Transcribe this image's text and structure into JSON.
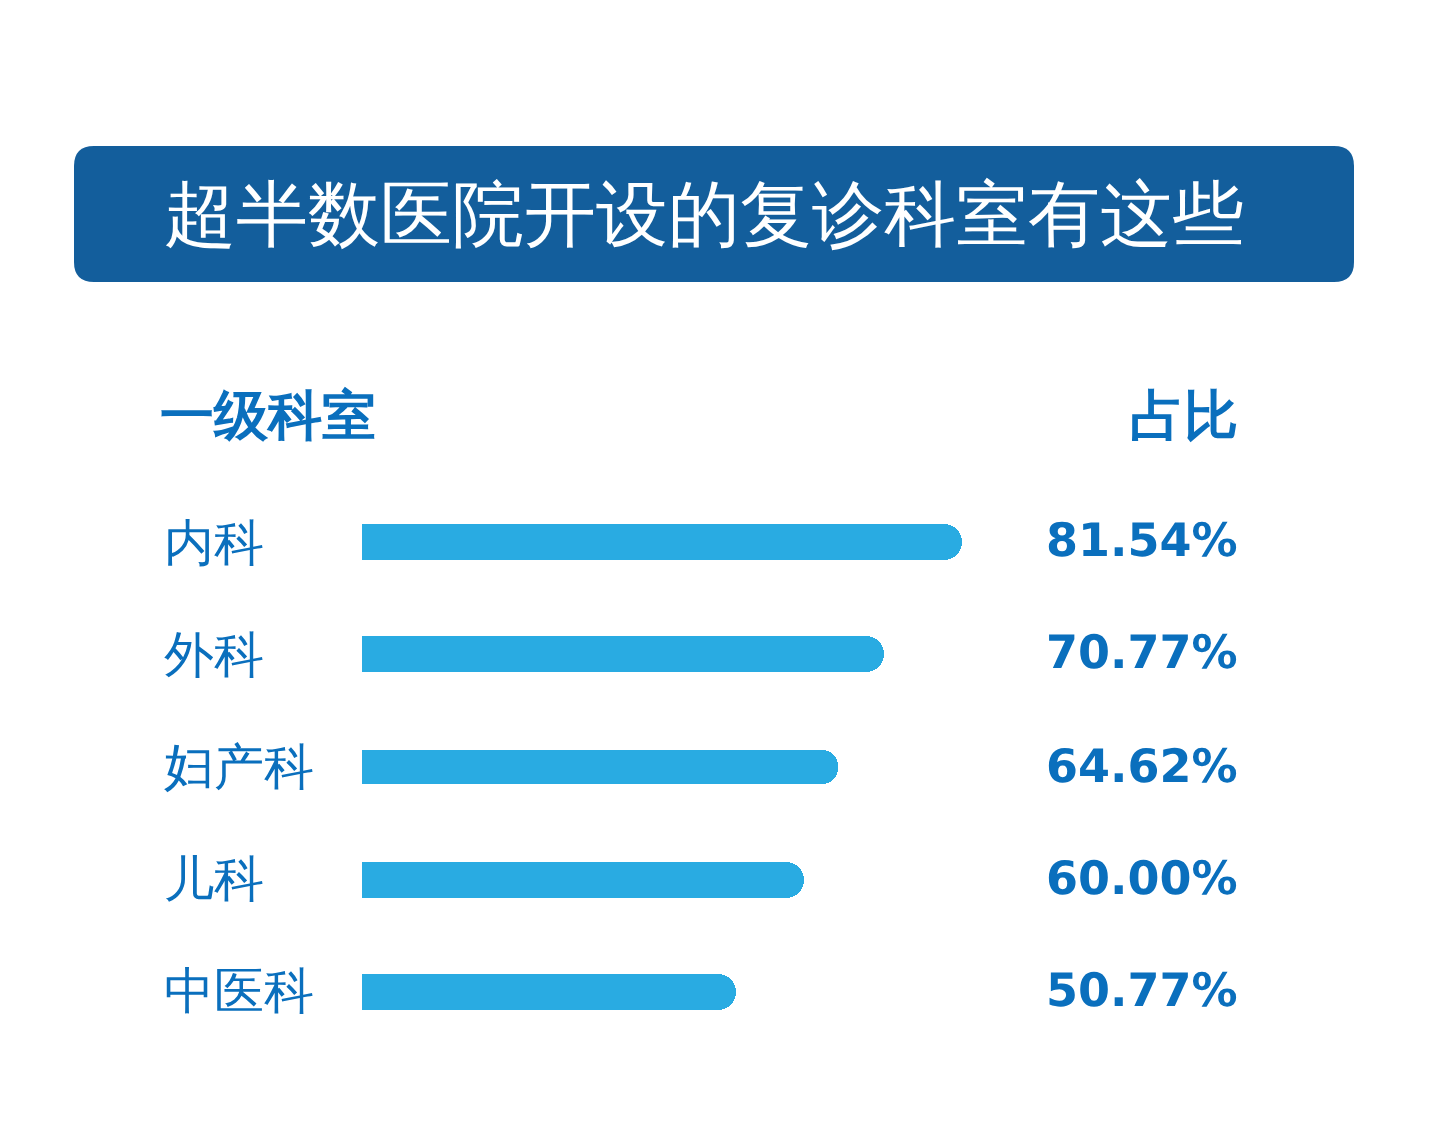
{
  "chart_data": {
    "type": "bar",
    "orientation": "horizontal",
    "title": "超半数医院开设的复诊科室有这些",
    "ylabel": "一级科室",
    "xlabel": "占比",
    "categories": [
      "内科",
      "外科",
      "妇产科",
      "儿科",
      "中医科"
    ],
    "values": [
      81.54,
      70.77,
      64.62,
      60.0,
      50.77
    ],
    "value_labels": [
      "81.54%",
      "70.77%",
      "64.62%",
      "60.00%",
      "50.77%"
    ],
    "color": "#29abe2"
  }
}
